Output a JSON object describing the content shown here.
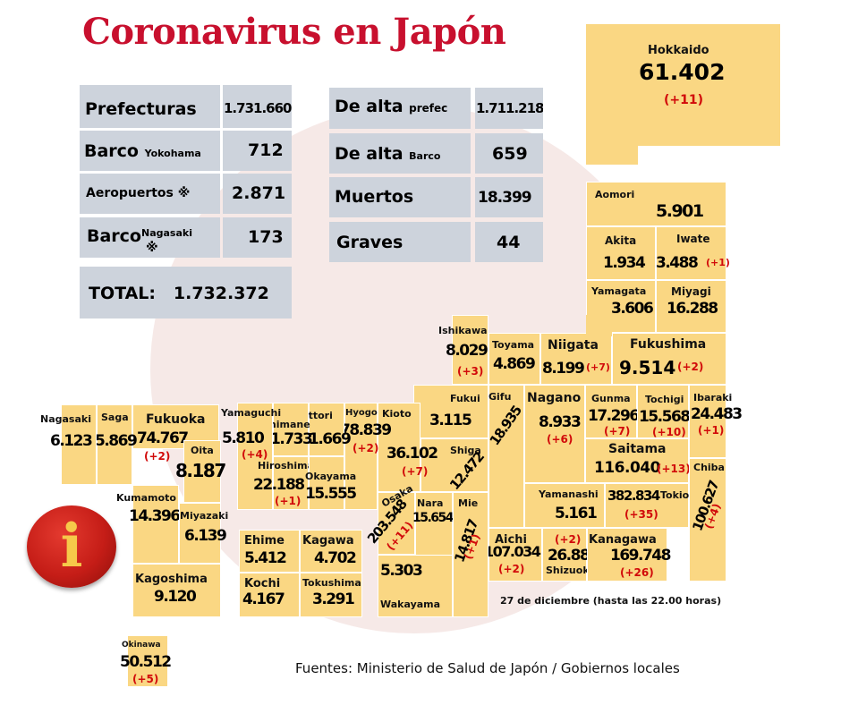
{
  "title": "Coronavirus en Japón",
  "colors": {
    "title": "#c8102e",
    "prefecture": "#fad783",
    "stat_box": "#cdd3dc",
    "delta": "#d10a0a",
    "background_circle": "#f6e9e7"
  },
  "stats": {
    "prefecturas": {
      "label": "Prefecturas",
      "value": "1.731.660"
    },
    "barco_yokohama": {
      "label": "Barco",
      "sub": "Yokohama",
      "value": "712"
    },
    "aeropuertos": {
      "label": "Aeropuertos",
      "mark": "※",
      "value": "2.871"
    },
    "barco_nagasaki": {
      "label": "Barco",
      "sub": "Nagasaki",
      "mark": "※",
      "value": "173"
    },
    "total": {
      "label": "TOTAL:",
      "value": "1.732.372"
    },
    "dealta_prefec": {
      "label": "De alta",
      "sub": "prefec",
      "value": "1.711.218"
    },
    "dealta_barco": {
      "label": "De alta",
      "sub": "Barco",
      "value": "659"
    },
    "muertos": {
      "label": "Muertos",
      "value": "18.399"
    },
    "graves": {
      "label": "Graves",
      "value": "44"
    }
  },
  "prefectures": {
    "hokkaido": {
      "name": "Hokkaido",
      "value": "61.402",
      "delta": "(+11)"
    },
    "aomori": {
      "name": "Aomori",
      "value": "5.901"
    },
    "akita": {
      "name": "Akita",
      "value": "1.934"
    },
    "iwate": {
      "name": "Iwate",
      "value": "3.488",
      "delta": "(+1)"
    },
    "yamagata": {
      "name": "Yamagata",
      "value": "3.606"
    },
    "miyagi": {
      "name": "Miyagi",
      "value": "16.288"
    },
    "ishikawa": {
      "name": "Ishikawa",
      "value": "8.029",
      "delta": "(+3)"
    },
    "toyama": {
      "name": "Toyama",
      "value": "4.869"
    },
    "niigata": {
      "name": "Niigata",
      "value": "8.199",
      "delta": "(+7)"
    },
    "fukushima": {
      "name": "Fukushima",
      "value": "9.514",
      "delta": "(+2)"
    },
    "fukui": {
      "name": "Fukui",
      "value": "3.115"
    },
    "gifu": {
      "name": "Gifu",
      "value": "18.935"
    },
    "nagano": {
      "name": "Nagano",
      "value": "8.933",
      "delta": "(+6)"
    },
    "gunma": {
      "name": "Gunma",
      "value": "17.296",
      "delta": "(+7)"
    },
    "tochigi": {
      "name": "Tochigi",
      "value": "15.568",
      "delta": "(+10)"
    },
    "ibaraki": {
      "name": "Ibaraki",
      "value": "24.483",
      "delta": "(+1)"
    },
    "saitama": {
      "name": "Saitama",
      "value": "116.040",
      "delta": "(+13)"
    },
    "chiba": {
      "name": "Chiba",
      "value": "100.627",
      "delta": "(+4)"
    },
    "tokio": {
      "name": "Tokio",
      "value": "382.834",
      "delta": "(+35)"
    },
    "yamanashi": {
      "name": "Yamanashi",
      "value": "5.161"
    },
    "kanagawa": {
      "name": "Kanagawa",
      "value": "169.748",
      "delta": "(+26)"
    },
    "shizuoka": {
      "name": "Shizuoka",
      "value": "26.885",
      "delta": "(+2)"
    },
    "aichi": {
      "name": "Aichi",
      "value": "107.034",
      "delta": "(+2)"
    },
    "mie": {
      "name": "Mie",
      "value": "14.817",
      "delta": "(+1)"
    },
    "shiga": {
      "name": "Shiga",
      "value": "12.472"
    },
    "kioto": {
      "name": "Kioto",
      "value": "36.102",
      "delta": "(+7)"
    },
    "nara": {
      "name": "Nara",
      "value": "15.654"
    },
    "osaka": {
      "name": "Osaka",
      "value": "203.548",
      "delta": "(+11)"
    },
    "wakayama": {
      "name": "Wakayama",
      "value": "5.303"
    },
    "hyogo": {
      "name": "Hyogo",
      "value": "78.839",
      "delta": "(+2)"
    },
    "tottori": {
      "name": "Tottori",
      "value": "1.669"
    },
    "shimane": {
      "name": "Shimane",
      "value": "1.733"
    },
    "okayama": {
      "name": "Okayama",
      "value": "15.555"
    },
    "hiroshima": {
      "name": "Hiroshima",
      "value": "22.188",
      "delta": "(+1)"
    },
    "yamaguchi": {
      "name": "Yamaguchi",
      "value": "5.810",
      "delta": "(+4)"
    },
    "ehime": {
      "name": "Ehime",
      "value": "5.412"
    },
    "kagawa": {
      "name": "Kagawa",
      "value": "4.702"
    },
    "kochi": {
      "name": "Kochi",
      "value": "4.167"
    },
    "tokushima": {
      "name": "Tokushima",
      "value": "3.291"
    },
    "fukuoka": {
      "name": "Fukuoka",
      "value": "74.767",
      "delta": "(+2)"
    },
    "oita": {
      "name": "Oita",
      "value": "8.187"
    },
    "saga": {
      "name": "Saga",
      "value": "5.869"
    },
    "nagasaki": {
      "name": "Nagasaki",
      "value": "6.123"
    },
    "kumamoto": {
      "name": "Kumamoto",
      "value": "14.396"
    },
    "miyazaki": {
      "name": "Miyazaki",
      "value": "6.139"
    },
    "kagoshima": {
      "name": "Kagoshima",
      "value": "9.120"
    },
    "okinawa": {
      "name": "Okinawa",
      "value": "50.512",
      "delta": "(+5)"
    }
  },
  "footer": {
    "date": "27 de diciembre  (hasta las  22.00 horas)",
    "sources": "Fuentes: Ministerio de Salud de Japón / Gobiernos locales"
  },
  "icons": {
    "info": "info-icon",
    "info_glyph": "i"
  }
}
